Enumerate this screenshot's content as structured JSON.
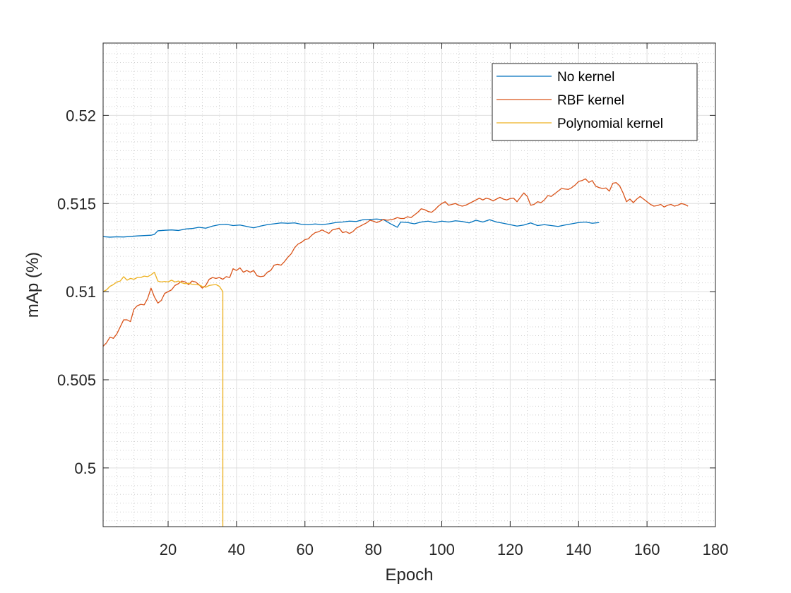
{
  "chart_data": {
    "type": "line",
    "title": "",
    "xlabel": "Epoch",
    "ylabel": "mAp (%)",
    "xlim": [
      1,
      180
    ],
    "ylim": [
      0.49667,
      0.5241
    ],
    "xticks": [
      20,
      40,
      60,
      80,
      100,
      120,
      140,
      160,
      180
    ],
    "xtick_labels": [
      "20",
      "40",
      "60",
      "80",
      "100",
      "120",
      "140",
      "160",
      "180"
    ],
    "yticks": [
      0.5,
      0.505,
      0.51,
      0.515,
      0.52
    ],
    "ytick_labels": [
      "0.5",
      "0.505",
      "0.51",
      "0.515",
      "0.52"
    ],
    "grid": true,
    "minor_grid": true,
    "legend_position": "top-right",
    "series": [
      {
        "name": "No kernel",
        "color": "#0072BD",
        "points": [
          [
            1,
            0.51312
          ],
          [
            3,
            0.51309
          ],
          [
            5,
            0.51311
          ],
          [
            7,
            0.5131
          ],
          [
            9,
            0.51313
          ],
          [
            11,
            0.51316
          ],
          [
            13,
            0.51318
          ],
          [
            15,
            0.5132
          ],
          [
            16,
            0.51325
          ],
          [
            17,
            0.51345
          ],
          [
            19,
            0.51348
          ],
          [
            21,
            0.5135
          ],
          [
            23,
            0.51347
          ],
          [
            25,
            0.51355
          ],
          [
            27,
            0.51358
          ],
          [
            29,
            0.51365
          ],
          [
            31,
            0.5136
          ],
          [
            33,
            0.51372
          ],
          [
            35,
            0.5138
          ],
          [
            37,
            0.51382
          ],
          [
            39,
            0.51375
          ],
          [
            41,
            0.51378
          ],
          [
            43,
            0.5137
          ],
          [
            45,
            0.51362
          ],
          [
            47,
            0.51372
          ],
          [
            49,
            0.5138
          ],
          [
            51,
            0.51385
          ],
          [
            53,
            0.5139
          ],
          [
            55,
            0.51388
          ],
          [
            57,
            0.5139
          ],
          [
            59,
            0.51382
          ],
          [
            61,
            0.5138
          ],
          [
            63,
            0.51384
          ],
          [
            65,
            0.5138
          ],
          [
            67,
            0.51385
          ],
          [
            69,
            0.51392
          ],
          [
            71,
            0.51395
          ],
          [
            73,
            0.514
          ],
          [
            75,
            0.51398
          ],
          [
            77,
            0.51408
          ],
          [
            79,
            0.5141
          ],
          [
            81,
            0.51412
          ],
          [
            83,
            0.51408
          ],
          [
            85,
            0.51385
          ],
          [
            87,
            0.51365
          ],
          [
            88,
            0.51395
          ],
          [
            90,
            0.51392
          ],
          [
            92,
            0.51385
          ],
          [
            94,
            0.51395
          ],
          [
            96,
            0.514
          ],
          [
            98,
            0.51392
          ],
          [
            100,
            0.514
          ],
          [
            102,
            0.51395
          ],
          [
            104,
            0.51402
          ],
          [
            106,
            0.51398
          ],
          [
            108,
            0.5139
          ],
          [
            110,
            0.51405
          ],
          [
            112,
            0.51395
          ],
          [
            114,
            0.51408
          ],
          [
            116,
            0.51395
          ],
          [
            118,
            0.51388
          ],
          [
            120,
            0.5138
          ],
          [
            122,
            0.51372
          ],
          [
            124,
            0.51378
          ],
          [
            126,
            0.5139
          ],
          [
            128,
            0.51375
          ],
          [
            130,
            0.5138
          ],
          [
            132,
            0.51375
          ],
          [
            134,
            0.5137
          ],
          [
            136,
            0.51378
          ],
          [
            138,
            0.51385
          ],
          [
            140,
            0.51392
          ],
          [
            142,
            0.51395
          ],
          [
            144,
            0.51388
          ],
          [
            146,
            0.51392
          ]
        ]
      },
      {
        "name": "RBF kernel",
        "color": "#D95319",
        "points": [
          [
            1,
            0.5069
          ],
          [
            2,
            0.5071
          ],
          [
            3,
            0.50742
          ],
          [
            4,
            0.50735
          ],
          [
            5,
            0.5076
          ],
          [
            6,
            0.508
          ],
          [
            7,
            0.5084
          ],
          [
            8,
            0.5084
          ],
          [
            9,
            0.5083
          ],
          [
            10,
            0.509
          ],
          [
            11,
            0.5092
          ],
          [
            12,
            0.50928
          ],
          [
            13,
            0.50925
          ],
          [
            14,
            0.5096
          ],
          [
            15,
            0.5102
          ],
          [
            16,
            0.5097
          ],
          [
            17,
            0.50935
          ],
          [
            18,
            0.5095
          ],
          [
            19,
            0.5099
          ],
          [
            20,
            0.51
          ],
          [
            21,
            0.5101
          ],
          [
            22,
            0.51035
          ],
          [
            23,
            0.51045
          ],
          [
            24,
            0.5106
          ],
          [
            25,
            0.51055
          ],
          [
            26,
            0.5104
          ],
          [
            27,
            0.5106
          ],
          [
            28,
            0.51055
          ],
          [
            29,
            0.5104
          ],
          [
            30,
            0.5102
          ],
          [
            31,
            0.51035
          ],
          [
            32,
            0.5107
          ],
          [
            33,
            0.5108
          ],
          [
            34,
            0.51075
          ],
          [
            35,
            0.5108
          ],
          [
            36,
            0.5107
          ],
          [
            37,
            0.51085
          ],
          [
            38,
            0.5108
          ],
          [
            39,
            0.5113
          ],
          [
            40,
            0.5112
          ],
          [
            41,
            0.51135
          ],
          [
            42,
            0.5111
          ],
          [
            43,
            0.5112
          ],
          [
            44,
            0.5111
          ],
          [
            45,
            0.5112
          ],
          [
            46,
            0.5109
          ],
          [
            47,
            0.51085
          ],
          [
            48,
            0.51088
          ],
          [
            49,
            0.5111
          ],
          [
            50,
            0.5112
          ],
          [
            51,
            0.5115
          ],
          [
            52,
            0.51155
          ],
          [
            53,
            0.5115
          ],
          [
            54,
            0.5117
          ],
          [
            55,
            0.51195
          ],
          [
            56,
            0.51215
          ],
          [
            57,
            0.5125
          ],
          [
            58,
            0.5127
          ],
          [
            59,
            0.5128
          ],
          [
            60,
            0.51295
          ],
          [
            61,
            0.513
          ],
          [
            62,
            0.5132
          ],
          [
            63,
            0.51335
          ],
          [
            64,
            0.5134
          ],
          [
            65,
            0.5135
          ],
          [
            66,
            0.5134
          ],
          [
            67,
            0.5133
          ],
          [
            68,
            0.5135
          ],
          [
            69,
            0.51355
          ],
          [
            70,
            0.5136
          ],
          [
            71,
            0.51335
          ],
          [
            72,
            0.5134
          ],
          [
            73,
            0.5133
          ],
          [
            74,
            0.5134
          ],
          [
            75,
            0.5136
          ],
          [
            76,
            0.5137
          ],
          [
            77,
            0.5138
          ],
          [
            78,
            0.5139
          ],
          [
            79,
            0.51405
          ],
          [
            80,
            0.514
          ],
          [
            81,
            0.51392
          ],
          [
            82,
            0.514
          ],
          [
            83,
            0.5141
          ],
          [
            84,
            0.51405
          ],
          [
            85,
            0.51408
          ],
          [
            86,
            0.51412
          ],
          [
            87,
            0.5142
          ],
          [
            88,
            0.51415
          ],
          [
            89,
            0.51415
          ],
          [
            90,
            0.51425
          ],
          [
            91,
            0.5142
          ],
          [
            92,
            0.51435
          ],
          [
            93,
            0.5145
          ],
          [
            94,
            0.5147
          ],
          [
            95,
            0.51465
          ],
          [
            96,
            0.51455
          ],
          [
            97,
            0.5145
          ],
          [
            98,
            0.51465
          ],
          [
            99,
            0.51485
          ],
          [
            100,
            0.515
          ],
          [
            101,
            0.5151
          ],
          [
            102,
            0.5149
          ],
          [
            103,
            0.51495
          ],
          [
            104,
            0.515
          ],
          [
            105,
            0.5149
          ],
          [
            106,
            0.51485
          ],
          [
            107,
            0.5149
          ],
          [
            108,
            0.515
          ],
          [
            109,
            0.5151
          ],
          [
            110,
            0.5152
          ],
          [
            111,
            0.5153
          ],
          [
            112,
            0.5152
          ],
          [
            113,
            0.5153
          ],
          [
            114,
            0.51525
          ],
          [
            115,
            0.51515
          ],
          [
            116,
            0.51525
          ],
          [
            117,
            0.51535
          ],
          [
            118,
            0.51525
          ],
          [
            119,
            0.5152
          ],
          [
            120,
            0.51528
          ],
          [
            121,
            0.5153
          ],
          [
            122,
            0.5151
          ],
          [
            123,
            0.51535
          ],
          [
            124,
            0.5156
          ],
          [
            125,
            0.5154
          ],
          [
            126,
            0.5149
          ],
          [
            127,
            0.51495
          ],
          [
            128,
            0.5151
          ],
          [
            129,
            0.51505
          ],
          [
            130,
            0.5152
          ],
          [
            131,
            0.51545
          ],
          [
            132,
            0.5154
          ],
          [
            133,
            0.51555
          ],
          [
            134,
            0.5157
          ],
          [
            135,
            0.51585
          ],
          [
            136,
            0.51582
          ],
          [
            137,
            0.5158
          ],
          [
            138,
            0.5159
          ],
          [
            139,
            0.51605
          ],
          [
            140,
            0.51625
          ],
          [
            141,
            0.5163
          ],
          [
            142,
            0.5164
          ],
          [
            143,
            0.5162
          ],
          [
            144,
            0.5163
          ],
          [
            145,
            0.51598
          ],
          [
            146,
            0.5159
          ],
          [
            147,
            0.51585
          ],
          [
            148,
            0.51588
          ],
          [
            149,
            0.5157
          ],
          [
            150,
            0.51615
          ],
          [
            151,
            0.51618
          ],
          [
            152,
            0.516
          ],
          [
            153,
            0.5156
          ],
          [
            154,
            0.5151
          ],
          [
            155,
            0.51525
          ],
          [
            156,
            0.51505
          ],
          [
            157,
            0.51525
          ],
          [
            158,
            0.5154
          ],
          [
            159,
            0.51525
          ],
          [
            160,
            0.5151
          ],
          [
            161,
            0.51495
          ],
          [
            162,
            0.51485
          ],
          [
            163,
            0.51488
          ],
          [
            164,
            0.51495
          ],
          [
            165,
            0.5148
          ],
          [
            166,
            0.5149
          ],
          [
            167,
            0.51495
          ],
          [
            168,
            0.51485
          ],
          [
            169,
            0.5149
          ],
          [
            170,
            0.515
          ],
          [
            171,
            0.51495
          ],
          [
            172,
            0.51485
          ]
        ]
      },
      {
        "name": "Polynomial kernel",
        "color": "#EDB120",
        "points": [
          [
            1,
            0.51
          ],
          [
            2,
            0.5101
          ],
          [
            3,
            0.5103
          ],
          [
            4,
            0.5104
          ],
          [
            5,
            0.51055
          ],
          [
            6,
            0.5106
          ],
          [
            7,
            0.51085
          ],
          [
            8,
            0.51065
          ],
          [
            9,
            0.51075
          ],
          [
            10,
            0.5107
          ],
          [
            11,
            0.5108
          ],
          [
            12,
            0.5108
          ],
          [
            13,
            0.51088
          ],
          [
            14,
            0.51085
          ],
          [
            15,
            0.51095
          ],
          [
            16,
            0.5111
          ],
          [
            17,
            0.5106
          ],
          [
            18,
            0.51055
          ],
          [
            19,
            0.51058
          ],
          [
            20,
            0.51055
          ],
          [
            21,
            0.51065
          ],
          [
            22,
            0.51055
          ],
          [
            23,
            0.5106
          ],
          [
            24,
            0.5105
          ],
          [
            25,
            0.51045
          ],
          [
            26,
            0.51048
          ],
          [
            27,
            0.51042
          ],
          [
            28,
            0.5104
          ],
          [
            29,
            0.51038
          ],
          [
            30,
            0.5103
          ],
          [
            31,
            0.51025
          ],
          [
            32,
            0.51035
          ],
          [
            33,
            0.51038
          ],
          [
            34,
            0.5104
          ],
          [
            35,
            0.5103
          ],
          [
            36,
            0.51
          ],
          [
            36,
            0.49667
          ]
        ]
      }
    ]
  }
}
